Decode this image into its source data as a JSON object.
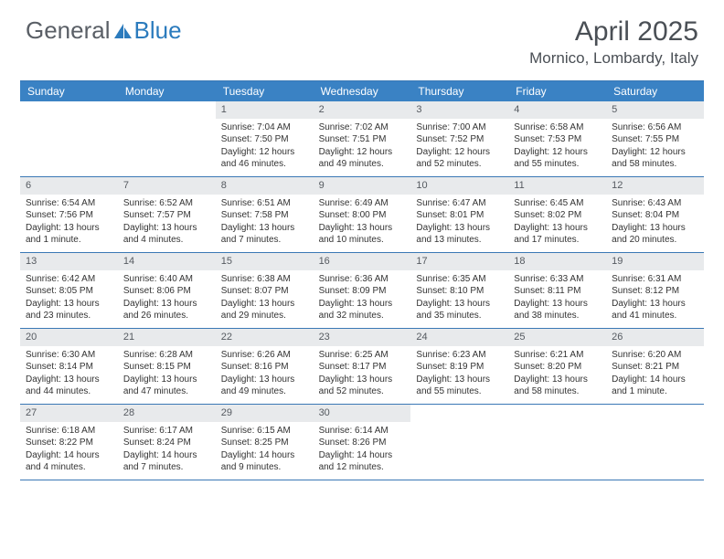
{
  "logo": {
    "text_a": "General",
    "text_b": "Blue"
  },
  "title": "April 2025",
  "location": "Mornico, Lombardy, Italy",
  "colors": {
    "header_bg": "#3a82c4",
    "header_text": "#ffffff",
    "border": "#3a78b5",
    "daynum_bg": "#e8eaec",
    "body_text": "#333333",
    "logo_gray": "#5a5f66",
    "logo_blue": "#2b7bbd"
  },
  "day_names": [
    "Sunday",
    "Monday",
    "Tuesday",
    "Wednesday",
    "Thursday",
    "Friday",
    "Saturday"
  ],
  "weeks": [
    [
      {
        "empty": true
      },
      {
        "empty": true
      },
      {
        "n": "1",
        "sr": "Sunrise: 7:04 AM",
        "ss": "Sunset: 7:50 PM",
        "d1": "Daylight: 12 hours",
        "d2": "and 46 minutes."
      },
      {
        "n": "2",
        "sr": "Sunrise: 7:02 AM",
        "ss": "Sunset: 7:51 PM",
        "d1": "Daylight: 12 hours",
        "d2": "and 49 minutes."
      },
      {
        "n": "3",
        "sr": "Sunrise: 7:00 AM",
        "ss": "Sunset: 7:52 PM",
        "d1": "Daylight: 12 hours",
        "d2": "and 52 minutes."
      },
      {
        "n": "4",
        "sr": "Sunrise: 6:58 AM",
        "ss": "Sunset: 7:53 PM",
        "d1": "Daylight: 12 hours",
        "d2": "and 55 minutes."
      },
      {
        "n": "5",
        "sr": "Sunrise: 6:56 AM",
        "ss": "Sunset: 7:55 PM",
        "d1": "Daylight: 12 hours",
        "d2": "and 58 minutes."
      }
    ],
    [
      {
        "n": "6",
        "sr": "Sunrise: 6:54 AM",
        "ss": "Sunset: 7:56 PM",
        "d1": "Daylight: 13 hours",
        "d2": "and 1 minute."
      },
      {
        "n": "7",
        "sr": "Sunrise: 6:52 AM",
        "ss": "Sunset: 7:57 PM",
        "d1": "Daylight: 13 hours",
        "d2": "and 4 minutes."
      },
      {
        "n": "8",
        "sr": "Sunrise: 6:51 AM",
        "ss": "Sunset: 7:58 PM",
        "d1": "Daylight: 13 hours",
        "d2": "and 7 minutes."
      },
      {
        "n": "9",
        "sr": "Sunrise: 6:49 AM",
        "ss": "Sunset: 8:00 PM",
        "d1": "Daylight: 13 hours",
        "d2": "and 10 minutes."
      },
      {
        "n": "10",
        "sr": "Sunrise: 6:47 AM",
        "ss": "Sunset: 8:01 PM",
        "d1": "Daylight: 13 hours",
        "d2": "and 13 minutes."
      },
      {
        "n": "11",
        "sr": "Sunrise: 6:45 AM",
        "ss": "Sunset: 8:02 PM",
        "d1": "Daylight: 13 hours",
        "d2": "and 17 minutes."
      },
      {
        "n": "12",
        "sr": "Sunrise: 6:43 AM",
        "ss": "Sunset: 8:04 PM",
        "d1": "Daylight: 13 hours",
        "d2": "and 20 minutes."
      }
    ],
    [
      {
        "n": "13",
        "sr": "Sunrise: 6:42 AM",
        "ss": "Sunset: 8:05 PM",
        "d1": "Daylight: 13 hours",
        "d2": "and 23 minutes."
      },
      {
        "n": "14",
        "sr": "Sunrise: 6:40 AM",
        "ss": "Sunset: 8:06 PM",
        "d1": "Daylight: 13 hours",
        "d2": "and 26 minutes."
      },
      {
        "n": "15",
        "sr": "Sunrise: 6:38 AM",
        "ss": "Sunset: 8:07 PM",
        "d1": "Daylight: 13 hours",
        "d2": "and 29 minutes."
      },
      {
        "n": "16",
        "sr": "Sunrise: 6:36 AM",
        "ss": "Sunset: 8:09 PM",
        "d1": "Daylight: 13 hours",
        "d2": "and 32 minutes."
      },
      {
        "n": "17",
        "sr": "Sunrise: 6:35 AM",
        "ss": "Sunset: 8:10 PM",
        "d1": "Daylight: 13 hours",
        "d2": "and 35 minutes."
      },
      {
        "n": "18",
        "sr": "Sunrise: 6:33 AM",
        "ss": "Sunset: 8:11 PM",
        "d1": "Daylight: 13 hours",
        "d2": "and 38 minutes."
      },
      {
        "n": "19",
        "sr": "Sunrise: 6:31 AM",
        "ss": "Sunset: 8:12 PM",
        "d1": "Daylight: 13 hours",
        "d2": "and 41 minutes."
      }
    ],
    [
      {
        "n": "20",
        "sr": "Sunrise: 6:30 AM",
        "ss": "Sunset: 8:14 PM",
        "d1": "Daylight: 13 hours",
        "d2": "and 44 minutes."
      },
      {
        "n": "21",
        "sr": "Sunrise: 6:28 AM",
        "ss": "Sunset: 8:15 PM",
        "d1": "Daylight: 13 hours",
        "d2": "and 47 minutes."
      },
      {
        "n": "22",
        "sr": "Sunrise: 6:26 AM",
        "ss": "Sunset: 8:16 PM",
        "d1": "Daylight: 13 hours",
        "d2": "and 49 minutes."
      },
      {
        "n": "23",
        "sr": "Sunrise: 6:25 AM",
        "ss": "Sunset: 8:17 PM",
        "d1": "Daylight: 13 hours",
        "d2": "and 52 minutes."
      },
      {
        "n": "24",
        "sr": "Sunrise: 6:23 AM",
        "ss": "Sunset: 8:19 PM",
        "d1": "Daylight: 13 hours",
        "d2": "and 55 minutes."
      },
      {
        "n": "25",
        "sr": "Sunrise: 6:21 AM",
        "ss": "Sunset: 8:20 PM",
        "d1": "Daylight: 13 hours",
        "d2": "and 58 minutes."
      },
      {
        "n": "26",
        "sr": "Sunrise: 6:20 AM",
        "ss": "Sunset: 8:21 PM",
        "d1": "Daylight: 14 hours",
        "d2": "and 1 minute."
      }
    ],
    [
      {
        "n": "27",
        "sr": "Sunrise: 6:18 AM",
        "ss": "Sunset: 8:22 PM",
        "d1": "Daylight: 14 hours",
        "d2": "and 4 minutes."
      },
      {
        "n": "28",
        "sr": "Sunrise: 6:17 AM",
        "ss": "Sunset: 8:24 PM",
        "d1": "Daylight: 14 hours",
        "d2": "and 7 minutes."
      },
      {
        "n": "29",
        "sr": "Sunrise: 6:15 AM",
        "ss": "Sunset: 8:25 PM",
        "d1": "Daylight: 14 hours",
        "d2": "and 9 minutes."
      },
      {
        "n": "30",
        "sr": "Sunrise: 6:14 AM",
        "ss": "Sunset: 8:26 PM",
        "d1": "Daylight: 14 hours",
        "d2": "and 12 minutes."
      },
      {
        "empty": true
      },
      {
        "empty": true
      },
      {
        "empty": true
      }
    ]
  ]
}
